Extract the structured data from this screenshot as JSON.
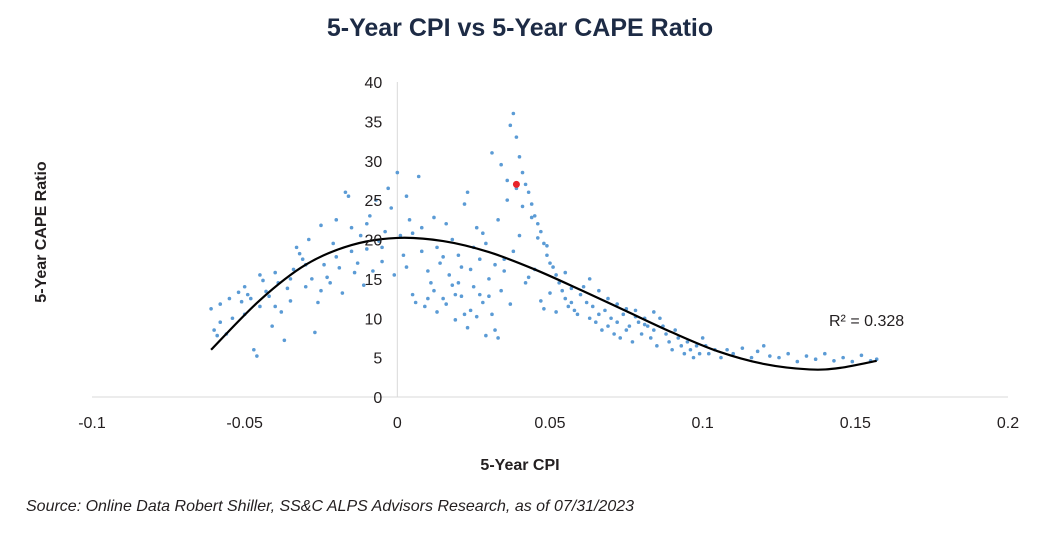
{
  "chart_data": {
    "type": "scatter",
    "title": "5-Year CPI vs 5-Year CAPE Ratio",
    "xlabel": "5-Year CPI",
    "ylabel": "5-Year CAPE Ratio",
    "xlim": [
      -0.1,
      0.2
    ],
    "ylim": [
      0,
      40
    ],
    "x_ticks": [
      "-0.1",
      "-0.05",
      "0",
      "0.05",
      "0.1",
      "0.15",
      "0.2"
    ],
    "y_ticks": [
      "0",
      "5",
      "10",
      "15",
      "20",
      "25",
      "30",
      "35",
      "40"
    ],
    "grid": false,
    "legend": "none",
    "point_color": "#5b9bd5",
    "highlight_color": "#e8242a",
    "trendline_color": "#000000",
    "series": [
      {
        "values_note": "",
        "points": [
          [
            -0.061,
            11.2
          ],
          [
            -0.06,
            8.5
          ],
          [
            -0.059,
            7.8
          ],
          [
            -0.058,
            9.5
          ],
          [
            -0.056,
            8.0
          ],
          [
            -0.054,
            10.0
          ],
          [
            -0.052,
            13.3
          ],
          [
            -0.051,
            12.1
          ],
          [
            -0.05,
            14.0
          ],
          [
            -0.049,
            13.0
          ],
          [
            -0.048,
            12.5
          ],
          [
            -0.047,
            6.0
          ],
          [
            -0.046,
            5.2
          ],
          [
            -0.045,
            15.5
          ],
          [
            -0.044,
            14.8
          ],
          [
            -0.043,
            13.4
          ],
          [
            -0.042,
            12.8
          ],
          [
            -0.041,
            9.0
          ],
          [
            -0.04,
            11.5
          ],
          [
            -0.039,
            14.5
          ],
          [
            -0.038,
            10.8
          ],
          [
            -0.037,
            7.2
          ],
          [
            -0.036,
            13.8
          ],
          [
            -0.035,
            12.2
          ],
          [
            -0.034,
            16.2
          ],
          [
            -0.033,
            19.0
          ],
          [
            -0.032,
            18.2
          ],
          [
            -0.031,
            17.5
          ],
          [
            -0.03,
            14.0
          ],
          [
            -0.029,
            20.0
          ],
          [
            -0.028,
            15.0
          ],
          [
            -0.027,
            8.2
          ],
          [
            -0.026,
            12.0
          ],
          [
            -0.025,
            21.8
          ],
          [
            -0.024,
            16.8
          ],
          [
            -0.023,
            15.2
          ],
          [
            -0.022,
            14.5
          ],
          [
            -0.021,
            19.5
          ],
          [
            -0.02,
            17.8
          ],
          [
            -0.019,
            16.4
          ],
          [
            -0.018,
            13.2
          ],
          [
            -0.017,
            26.0
          ],
          [
            -0.016,
            25.5
          ],
          [
            -0.015,
            18.5
          ],
          [
            -0.014,
            15.8
          ],
          [
            -0.013,
            17.0
          ],
          [
            -0.012,
            20.5
          ],
          [
            -0.011,
            14.2
          ],
          [
            -0.01,
            18.8
          ],
          [
            -0.009,
            23.0
          ],
          [
            -0.008,
            16.0
          ],
          [
            -0.007,
            25.0
          ],
          [
            -0.006,
            19.8
          ],
          [
            -0.005,
            17.2
          ],
          [
            -0.004,
            21.0
          ],
          [
            -0.003,
            26.5
          ],
          [
            -0.002,
            24.0
          ],
          [
            -0.001,
            15.5
          ],
          [
            0.0,
            28.5
          ],
          [
            0.001,
            20.5
          ],
          [
            0.002,
            18.0
          ],
          [
            0.003,
            16.5
          ],
          [
            0.004,
            22.5
          ],
          [
            0.005,
            13.0
          ],
          [
            0.006,
            12.0
          ],
          [
            0.007,
            28.0
          ],
          [
            0.008,
            18.5
          ],
          [
            0.009,
            11.5
          ],
          [
            0.01,
            16.0
          ],
          [
            0.011,
            14.5
          ],
          [
            0.012,
            13.5
          ],
          [
            0.013,
            19.0
          ],
          [
            0.014,
            17.0
          ],
          [
            0.015,
            12.5
          ],
          [
            0.016,
            22.0
          ],
          [
            0.017,
            15.5
          ],
          [
            0.018,
            20.0
          ],
          [
            0.019,
            13.0
          ],
          [
            0.02,
            18.0
          ],
          [
            0.021,
            16.5
          ],
          [
            0.022,
            24.5
          ],
          [
            0.023,
            26.0
          ],
          [
            0.024,
            11.0
          ],
          [
            0.025,
            14.0
          ],
          [
            0.026,
            21.5
          ],
          [
            0.027,
            17.5
          ],
          [
            0.028,
            12.0
          ],
          [
            0.029,
            19.5
          ],
          [
            0.03,
            15.0
          ],
          [
            0.031,
            10.5
          ],
          [
            0.032,
            8.5
          ],
          [
            0.033,
            7.5
          ],
          [
            0.034,
            13.5
          ],
          [
            0.035,
            16.0
          ],
          [
            0.036,
            25.0
          ],
          [
            0.037,
            34.5
          ],
          [
            0.038,
            36.0
          ],
          [
            0.039,
            33.0
          ],
          [
            0.04,
            30.5
          ],
          [
            0.041,
            28.5
          ],
          [
            0.042,
            27.0
          ],
          [
            0.043,
            26.0
          ],
          [
            0.044,
            24.5
          ],
          [
            0.045,
            23.0
          ],
          [
            0.046,
            22.0
          ],
          [
            0.047,
            21.0
          ],
          [
            0.048,
            19.5
          ],
          [
            0.049,
            18.0
          ],
          [
            0.05,
            17.0
          ],
          [
            0.051,
            16.5
          ],
          [
            0.052,
            15.5
          ],
          [
            0.053,
            14.5
          ],
          [
            0.054,
            13.5
          ],
          [
            0.055,
            12.5
          ],
          [
            0.056,
            11.5
          ],
          [
            0.057,
            12.0
          ],
          [
            0.058,
            11.0
          ],
          [
            0.059,
            10.5
          ],
          [
            0.06,
            13.0
          ],
          [
            0.061,
            14.0
          ],
          [
            0.062,
            12.0
          ],
          [
            0.063,
            10.0
          ],
          [
            0.064,
            11.5
          ],
          [
            0.065,
            9.5
          ],
          [
            0.066,
            10.5
          ],
          [
            0.067,
            8.5
          ],
          [
            0.068,
            11.0
          ],
          [
            0.069,
            9.0
          ],
          [
            0.07,
            10.0
          ],
          [
            0.071,
            8.0
          ],
          [
            0.072,
            9.5
          ],
          [
            0.073,
            7.5
          ],
          [
            0.074,
            10.5
          ],
          [
            0.075,
            8.5
          ],
          [
            0.076,
            9.0
          ],
          [
            0.077,
            7.0
          ],
          [
            0.078,
            11.0
          ],
          [
            0.079,
            9.5
          ],
          [
            0.08,
            8.0
          ],
          [
            0.081,
            10.0
          ],
          [
            0.082,
            9.0
          ],
          [
            0.083,
            7.5
          ],
          [
            0.084,
            8.5
          ],
          [
            0.085,
            6.5
          ],
          [
            0.086,
            10.0
          ],
          [
            0.087,
            9.0
          ],
          [
            0.088,
            8.0
          ],
          [
            0.089,
            7.0
          ],
          [
            0.09,
            6.0
          ],
          [
            0.091,
            8.5
          ],
          [
            0.092,
            7.5
          ],
          [
            0.093,
            6.5
          ],
          [
            0.094,
            5.5
          ],
          [
            0.095,
            7.0
          ],
          [
            0.096,
            6.0
          ],
          [
            0.097,
            5.0
          ],
          [
            0.098,
            6.5
          ],
          [
            0.099,
            5.5
          ],
          [
            0.1,
            7.5
          ],
          [
            0.101,
            6.5
          ],
          [
            0.102,
            5.5
          ],
          [
            0.104,
            6.0
          ],
          [
            0.106,
            5.0
          ],
          [
            0.108,
            6.0
          ],
          [
            0.11,
            5.5
          ],
          [
            0.113,
            6.2
          ],
          [
            0.116,
            5.0
          ],
          [
            0.118,
            5.8
          ],
          [
            0.12,
            6.5
          ],
          [
            0.122,
            5.2
          ],
          [
            0.125,
            5.0
          ],
          [
            0.128,
            5.5
          ],
          [
            0.131,
            4.5
          ],
          [
            0.134,
            5.2
          ],
          [
            0.137,
            4.8
          ],
          [
            0.14,
            5.5
          ],
          [
            0.143,
            4.6
          ],
          [
            0.146,
            5.0
          ],
          [
            0.149,
            4.5
          ],
          [
            0.152,
            5.3
          ],
          [
            0.155,
            4.6
          ],
          [
            0.157,
            4.8
          ],
          [
            0.02,
            14.5
          ],
          [
            0.025,
            19.0
          ],
          [
            0.03,
            12.8
          ],
          [
            0.035,
            17.5
          ],
          [
            0.04,
            20.5
          ],
          [
            0.045,
            16.2
          ],
          [
            0.05,
            13.2
          ],
          [
            0.055,
            15.8
          ],
          [
            0.022,
            10.5
          ],
          [
            0.027,
            13.0
          ],
          [
            0.032,
            16.8
          ],
          [
            0.037,
            11.8
          ],
          [
            0.042,
            14.5
          ],
          [
            0.047,
            12.2
          ],
          [
            0.052,
            10.8
          ],
          [
            0.057,
            13.8
          ],
          [
            0.015,
            17.8
          ],
          [
            0.018,
            14.2
          ],
          [
            0.024,
            16.2
          ],
          [
            0.028,
            20.8
          ],
          [
            0.033,
            22.5
          ],
          [
            0.038,
            18.5
          ],
          [
            0.043,
            15.2
          ],
          [
            0.048,
            11.2
          ],
          [
            0.01,
            12.5
          ],
          [
            0.013,
            10.8
          ],
          [
            0.016,
            11.8
          ],
          [
            0.019,
            9.8
          ],
          [
            0.021,
            12.8
          ],
          [
            0.023,
            8.8
          ],
          [
            0.026,
            10.2
          ],
          [
            0.029,
            7.8
          ],
          [
            0.031,
            31.0
          ],
          [
            0.034,
            29.5
          ],
          [
            0.036,
            27.5
          ],
          [
            0.039,
            26.5
          ],
          [
            0.041,
            24.2
          ],
          [
            0.044,
            22.8
          ],
          [
            0.046,
            20.2
          ],
          [
            0.049,
            19.2
          ],
          [
            0.063,
            15.0
          ],
          [
            0.066,
            13.5
          ],
          [
            0.069,
            12.5
          ],
          [
            0.072,
            11.8
          ],
          [
            0.075,
            11.2
          ],
          [
            0.078,
            10.2
          ],
          [
            0.081,
            9.2
          ],
          [
            0.084,
            10.8
          ],
          [
            -0.02,
            22.5
          ],
          [
            -0.015,
            21.5
          ],
          [
            -0.01,
            22.0
          ],
          [
            -0.005,
            19.0
          ],
          [
            0.005,
            20.8
          ],
          [
            0.008,
            21.5
          ],
          [
            0.012,
            22.8
          ],
          [
            0.003,
            25.5
          ],
          [
            -0.035,
            15.0
          ],
          [
            -0.03,
            16.8
          ],
          [
            -0.025,
            13.5
          ],
          [
            -0.045,
            11.5
          ],
          [
            -0.04,
            15.8
          ],
          [
            -0.05,
            10.5
          ],
          [
            -0.055,
            12.5
          ],
          [
            -0.058,
            11.8
          ]
        ]
      }
    ],
    "highlight_point": [
      0.039,
      27.0
    ],
    "trendline": {
      "type": "polynomial",
      "curve": [
        [
          -0.061,
          6.0
        ],
        [
          -0.045,
          12.3
        ],
        [
          -0.03,
          16.8
        ],
        [
          -0.015,
          19.3
        ],
        [
          0.0,
          20.2
        ],
        [
          0.015,
          19.8
        ],
        [
          0.03,
          18.4
        ],
        [
          0.045,
          16.2
        ],
        [
          0.06,
          13.6
        ],
        [
          0.075,
          10.9
        ],
        [
          0.09,
          8.2
        ],
        [
          0.105,
          5.8
        ],
        [
          0.12,
          4.2
        ],
        [
          0.135,
          3.5
        ],
        [
          0.145,
          3.7
        ],
        [
          0.157,
          4.6
        ]
      ],
      "r_squared_label": "R² = 0.328"
    }
  },
  "source": "Source: Online Data Robert Shiller, SS&C ALPS Advisors Research, as of 07/31/2023"
}
